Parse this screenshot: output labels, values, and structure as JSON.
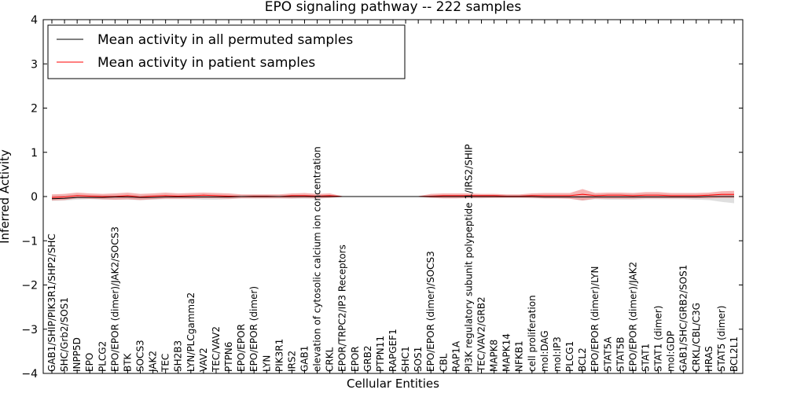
{
  "chart_data": {
    "type": "line",
    "title": "EPO signaling pathway -- 222 samples",
    "xlabel": "Cellular Entities",
    "ylabel": "Inferred Activity",
    "ylim": [
      -4,
      4
    ],
    "yticks": [
      -4,
      -3,
      -2,
      -1,
      0,
      1,
      2,
      3,
      4
    ],
    "legend_position": "top-left",
    "categories": [
      "GAB1/SHIP/PIK3R1/SHP2/SHC",
      "SHC/Grb2/SOS1",
      "INPP5D",
      "EPO",
      "PLCG2",
      "EPO/EPOR (dimer)/JAK2/SOCS3",
      "BTK",
      "SOCS3",
      "JAK2",
      "TEC",
      "SH2B3",
      "LYN/PLCgamma2",
      "VAV2",
      "TEC/VAV2",
      "PTPN6",
      "EPO/EPOR",
      "EPO/EPOR (dimer)",
      "LYN",
      "PIK3R1",
      "IRS2",
      "GAB1",
      "elevation of cytosolic calcium ion concentration",
      "CRKL",
      "EPOR/TRPC2/IP3 Receptors",
      "EPOR",
      "GRB2",
      "PTPN11",
      "RAPGEF1",
      "SHC1",
      "SOS1",
      "EPO/EPOR (dimer)/SOCS3",
      "CBL",
      "RAP1A",
      "PI3K regulatory subunit polypeptide 1/IRS2/SHIP",
      "TEC/VAV2/GRB2",
      "MAPK8",
      "MAPK14",
      "NFKB1",
      "cell proliferation",
      "mol:DAG",
      "mol:IP3",
      "PLCG1",
      "BCL2",
      "EPO/EPOR (dimer)/LYN",
      "STAT5A",
      "STAT5B",
      "EPO/EPOR (dimer)/JAK2",
      "STAT1",
      "STAT1 (dimer)",
      "mol:GDP",
      "GAB1/SHC/GRB2/SOS1",
      "CRKL/CBL/C3G",
      "HRAS",
      "STAT5 (dimer)",
      "BCL2L1"
    ],
    "series": [
      {
        "name": "Mean activity in all permuted samples",
        "color": "#000000",
        "values": [
          -0.05,
          -0.04,
          -0.02,
          -0.02,
          -0.02,
          -0.01,
          -0.01,
          -0.02,
          -0.02,
          -0.01,
          -0.01,
          -0.01,
          -0.01,
          -0.01,
          -0.01,
          0.0,
          0.0,
          0.0,
          0.0,
          0.0,
          0.0,
          0.0,
          0.0,
          0.0,
          0.0,
          0.0,
          0.0,
          0.0,
          0.0,
          0.0,
          0.0,
          0.0,
          0.0,
          0.0,
          0.0,
          0.0,
          0.0,
          0.0,
          0.0,
          -0.01,
          -0.01,
          -0.01,
          -0.01,
          -0.01,
          -0.01,
          -0.01,
          -0.01,
          -0.01,
          -0.01,
          -0.01,
          -0.01,
          -0.01,
          0.0,
          0.0,
          0.0
        ],
        "band_low": [
          -0.1,
          -0.09,
          -0.07,
          -0.06,
          -0.07,
          -0.07,
          -0.07,
          -0.08,
          -0.07,
          -0.06,
          -0.06,
          -0.06,
          -0.07,
          -0.07,
          -0.06,
          -0.04,
          -0.04,
          -0.04,
          -0.04,
          -0.05,
          -0.05,
          -0.05,
          -0.03,
          -0.01,
          -0.01,
          -0.01,
          -0.01,
          -0.01,
          -0.01,
          -0.01,
          -0.03,
          -0.04,
          -0.04,
          -0.04,
          -0.04,
          -0.03,
          -0.03,
          -0.03,
          -0.04,
          -0.05,
          -0.05,
          -0.05,
          -0.09,
          -0.06,
          -0.07,
          -0.07,
          -0.07,
          -0.06,
          -0.06,
          -0.06,
          -0.06,
          -0.07,
          -0.08,
          -0.12,
          -0.15
        ],
        "band_high": [
          0.02,
          0.03,
          0.04,
          0.03,
          0.03,
          0.04,
          0.04,
          0.03,
          0.03,
          0.04,
          0.04,
          0.04,
          0.04,
          0.04,
          0.04,
          0.03,
          0.03,
          0.03,
          0.03,
          0.03,
          0.03,
          0.03,
          0.03,
          0.01,
          0.01,
          0.01,
          0.01,
          0.01,
          0.01,
          0.01,
          0.02,
          0.02,
          0.02,
          0.02,
          0.03,
          0.03,
          0.03,
          0.03,
          0.04,
          0.04,
          0.04,
          0.04,
          0.06,
          0.05,
          0.05,
          0.05,
          0.05,
          0.05,
          0.05,
          0.04,
          0.04,
          0.04,
          0.04,
          0.05,
          0.05
        ]
      },
      {
        "name": "Mean activity in patient samples",
        "color": "#ff0000",
        "values": [
          -0.02,
          -0.01,
          0.02,
          0.01,
          0.0,
          0.0,
          0.02,
          -0.01,
          0.01,
          0.02,
          0.01,
          0.02,
          0.03,
          0.02,
          0.01,
          0.0,
          0.01,
          0.01,
          0.0,
          0.02,
          0.02,
          0.01,
          0.02,
          0.0,
          0.0,
          0.0,
          0.0,
          0.0,
          0.0,
          0.0,
          0.01,
          0.02,
          0.02,
          0.02,
          0.02,
          0.02,
          0.01,
          0.01,
          0.02,
          0.02,
          0.02,
          0.02,
          0.05,
          0.02,
          0.03,
          0.03,
          0.02,
          0.03,
          0.03,
          0.02,
          0.02,
          0.02,
          0.03,
          0.05,
          0.05
        ],
        "band_low": [
          -0.09,
          -0.08,
          -0.04,
          -0.05,
          -0.06,
          -0.07,
          -0.06,
          -0.08,
          -0.06,
          -0.05,
          -0.05,
          -0.05,
          -0.04,
          -0.04,
          -0.05,
          -0.04,
          -0.04,
          -0.04,
          -0.04,
          -0.04,
          -0.03,
          -0.04,
          -0.03,
          -0.01,
          -0.01,
          -0.01,
          -0.01,
          -0.01,
          -0.01,
          -0.01,
          -0.03,
          -0.04,
          -0.04,
          -0.03,
          -0.03,
          -0.03,
          -0.03,
          -0.03,
          -0.03,
          -0.04,
          -0.04,
          -0.05,
          -0.09,
          -0.05,
          -0.05,
          -0.05,
          -0.05,
          -0.04,
          -0.04,
          -0.04,
          -0.04,
          -0.04,
          -0.04,
          -0.03,
          -0.03
        ],
        "band_high": [
          0.05,
          0.06,
          0.09,
          0.07,
          0.06,
          0.07,
          0.09,
          0.06,
          0.07,
          0.09,
          0.07,
          0.08,
          0.09,
          0.08,
          0.07,
          0.05,
          0.05,
          0.05,
          0.05,
          0.07,
          0.08,
          0.06,
          0.07,
          0.01,
          0.01,
          0.01,
          0.01,
          0.01,
          0.01,
          0.01,
          0.06,
          0.07,
          0.07,
          0.07,
          0.06,
          0.06,
          0.05,
          0.05,
          0.07,
          0.08,
          0.08,
          0.08,
          0.17,
          0.08,
          0.09,
          0.09,
          0.08,
          0.1,
          0.1,
          0.08,
          0.08,
          0.08,
          0.09,
          0.12,
          0.13
        ]
      }
    ]
  }
}
